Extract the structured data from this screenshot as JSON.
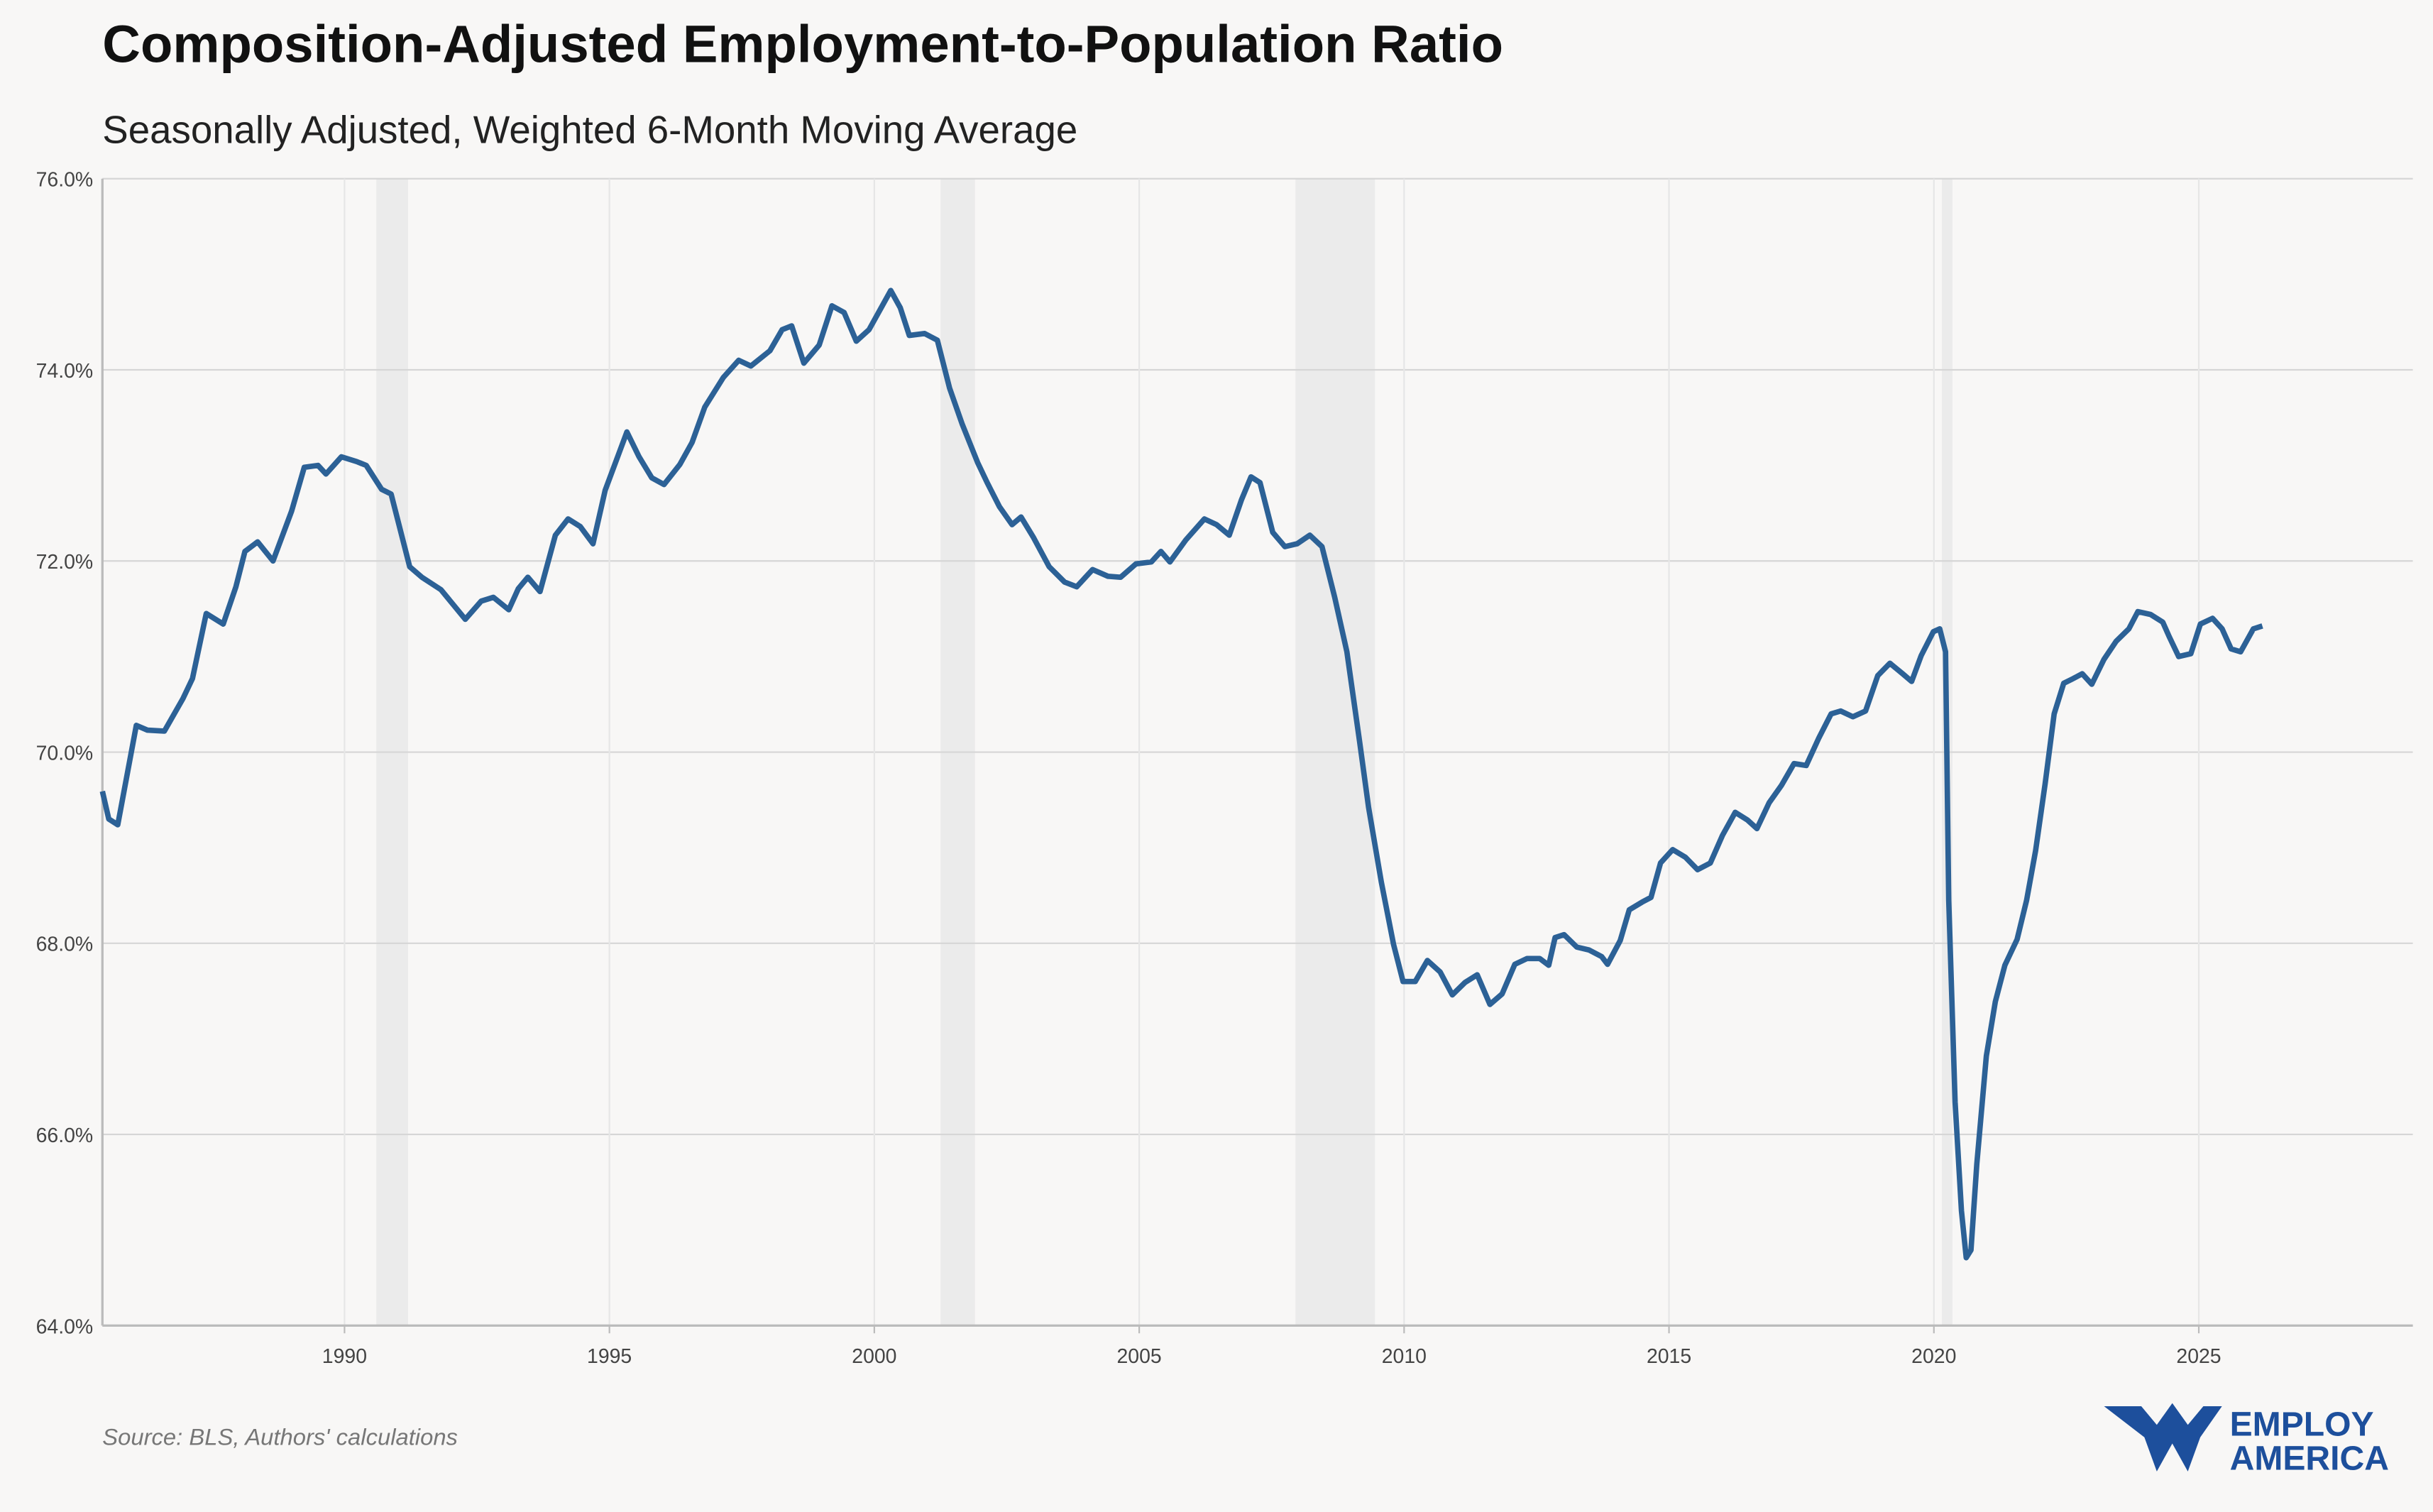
{
  "chart_data": {
    "type": "line",
    "title": "Composition-Adjusted Employment-to-Population Ratio",
    "subtitle": "Seasonally Adjusted, Weighted 6-Month Moving Average",
    "source": "Source: BLS, Authors' calculations",
    "logo": [
      "EMPLOY",
      "AMERICA"
    ],
    "xlim": [
      1985.43,
      2029.04
    ],
    "ylim": [
      64,
      76
    ],
    "xticks": [
      1990,
      1995,
      2000,
      2005,
      2010,
      2015,
      2020,
      2025
    ],
    "yticks": [
      {
        "value": 64,
        "label": "64.0%"
      },
      {
        "value": 66,
        "label": "66.0%"
      },
      {
        "value": 68,
        "label": "68.0%"
      },
      {
        "value": 70,
        "label": "70.0%"
      },
      {
        "value": 72,
        "label": "72.0%"
      },
      {
        "value": 74,
        "label": "74.0%"
      },
      {
        "value": 76,
        "label": "76.0%"
      }
    ],
    "grid": true,
    "shaded_periods": [
      [
        1990.6,
        1991.2
      ],
      [
        2001.25,
        2001.9
      ],
      [
        2007.95,
        2009.45
      ],
      [
        2020.15,
        2020.35
      ]
    ],
    "shade_color": "#ebebeb",
    "series": [
      {
        "color": "#2c6196",
        "x": [
          1985.43,
          1985.55,
          1985.72,
          1986.07,
          1986.28,
          1986.6,
          1986.95,
          1987.13,
          1987.39,
          1987.71,
          1987.95,
          1988.12,
          1988.36,
          1988.65,
          1989.0,
          1989.24,
          1989.5,
          1989.65,
          1989.94,
          1990.23,
          1990.41,
          1990.7,
          1990.88,
          1991.23,
          1991.46,
          1991.82,
          1992.28,
          1992.58,
          1992.81,
          1993.1,
          1993.28,
          1993.46,
          1993.69,
          1993.98,
          1994.22,
          1994.45,
          1994.69,
          1994.92,
          1995.33,
          1995.56,
          1995.8,
          1996.03,
          1996.33,
          1996.56,
          1996.8,
          1997.15,
          1997.44,
          1997.67,
          1998.03,
          1998.26,
          1998.44,
          1998.67,
          1998.96,
          1999.2,
          1999.43,
          1999.66,
          1999.9,
          2000.13,
          2000.31,
          2000.49,
          2000.66,
          2000.95,
          2001.19,
          2001.42,
          2001.66,
          2001.95,
          2002.13,
          2002.36,
          2002.6,
          2002.77,
          2003.0,
          2003.3,
          2003.59,
          2003.82,
          2004.12,
          2004.41,
          2004.65,
          2004.94,
          2005.23,
          2005.41,
          2005.58,
          2005.88,
          2006.23,
          2006.46,
          2006.7,
          2006.93,
          2007.11,
          2007.28,
          2007.52,
          2007.75,
          2007.98,
          2008.22,
          2008.45,
          2008.69,
          2008.92,
          2009.16,
          2009.33,
          2009.57,
          2009.8,
          2009.98,
          2010.21,
          2010.44,
          2010.68,
          2010.91,
          2011.15,
          2011.38,
          2011.62,
          2011.85,
          2012.09,
          2012.32,
          2012.56,
          2012.73,
          2012.85,
          2013.02,
          2013.26,
          2013.49,
          2013.73,
          2013.84,
          2014.08,
          2014.25,
          2014.49,
          2014.66,
          2014.84,
          2015.07,
          2015.31,
          2015.54,
          2015.78,
          2016.01,
          2016.25,
          2016.48,
          2016.66,
          2016.89,
          2017.12,
          2017.36,
          2017.59,
          2017.83,
          2018.06,
          2018.24,
          2018.47,
          2018.71,
          2018.94,
          2019.17,
          2019.41,
          2019.58,
          2019.76,
          2019.99,
          2020.11,
          2020.22,
          2020.28,
          2020.4,
          2020.52,
          2020.61,
          2020.7,
          2020.81,
          2020.99,
          2021.16,
          2021.34,
          2021.57,
          2021.75,
          2021.92,
          2022.1,
          2022.27,
          2022.45,
          2022.63,
          2022.8,
          2022.98,
          2023.21,
          2023.44,
          2023.68,
          2023.85,
          2024.09,
          2024.32,
          2024.44,
          2024.62,
          2024.85,
          2025.03,
          2025.26,
          2025.44,
          2025.61,
          2025.79,
          2026.03,
          2026.2
        ],
        "values": [
          69.59,
          69.3,
          69.24,
          70.28,
          70.23,
          70.22,
          70.56,
          70.77,
          71.45,
          71.34,
          71.73,
          72.1,
          72.2,
          72.0,
          72.52,
          72.98,
          73.0,
          72.91,
          73.09,
          73.04,
          73.0,
          72.75,
          72.7,
          71.94,
          71.83,
          71.7,
          71.39,
          71.58,
          71.62,
          71.49,
          71.71,
          71.83,
          71.68,
          72.27,
          72.44,
          72.36,
          72.18,
          72.74,
          73.35,
          73.09,
          72.87,
          72.8,
          73.01,
          73.24,
          73.61,
          73.92,
          74.1,
          74.04,
          74.2,
          74.42,
          74.46,
          74.07,
          74.26,
          74.67,
          74.6,
          74.3,
          74.42,
          74.65,
          74.83,
          74.65,
          74.36,
          74.38,
          74.31,
          73.81,
          73.43,
          73.03,
          72.82,
          72.57,
          72.38,
          72.46,
          72.25,
          71.94,
          71.78,
          71.73,
          71.91,
          71.84,
          71.83,
          71.97,
          71.99,
          72.1,
          71.99,
          72.22,
          72.44,
          72.38,
          72.27,
          72.64,
          72.88,
          72.82,
          72.3,
          72.15,
          72.18,
          72.27,
          72.15,
          71.62,
          71.05,
          70.11,
          69.42,
          68.64,
          67.99,
          67.6,
          67.6,
          67.82,
          67.7,
          67.46,
          67.59,
          67.67,
          67.36,
          67.47,
          67.78,
          67.84,
          67.84,
          67.77,
          68.06,
          68.09,
          67.96,
          67.93,
          67.86,
          67.78,
          68.03,
          68.35,
          68.43,
          68.48,
          68.84,
          68.98,
          68.9,
          68.77,
          68.84,
          69.13,
          69.37,
          69.29,
          69.2,
          69.47,
          69.65,
          69.88,
          69.86,
          70.15,
          70.4,
          70.43,
          70.37,
          70.43,
          70.8,
          70.93,
          70.82,
          70.74,
          71.01,
          71.26,
          71.29,
          71.05,
          68.45,
          66.34,
          65.2,
          64.71,
          64.79,
          65.69,
          66.82,
          67.39,
          67.77,
          68.04,
          68.45,
          68.97,
          69.67,
          70.4,
          70.72,
          70.77,
          70.82,
          70.71,
          70.97,
          71.16,
          71.29,
          71.47,
          71.44,
          71.36,
          71.21,
          71.0,
          71.03,
          71.34,
          71.4,
          71.29,
          71.08,
          71.05,
          71.29,
          71.32
        ]
      }
    ]
  }
}
